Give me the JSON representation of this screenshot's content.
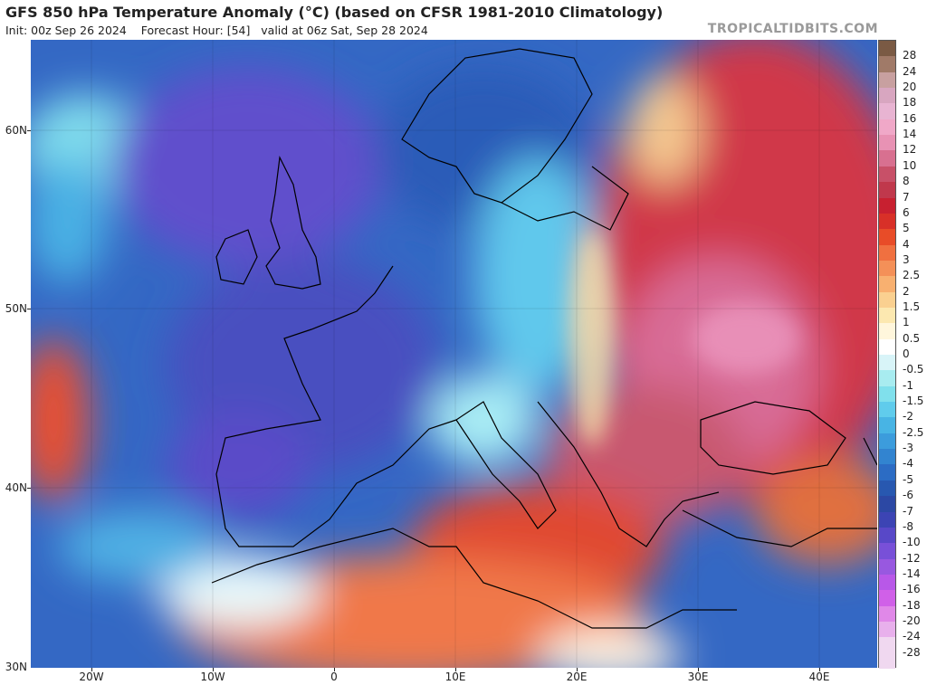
{
  "header": {
    "title": "GFS 850 hPa Temperature Anomaly (°C) (based on CFSR 1981-2010 Climatology)",
    "init": "Init: 00z Sep 26 2024",
    "forecast_hour": "Forecast Hour: [54]",
    "valid": "valid at 06z Sat, Sep 28 2024",
    "brand": "TROPICALTIDBITS.COM"
  },
  "axes": {
    "lat_labels": [
      "60N",
      "50N",
      "40N",
      "30N"
    ],
    "lon_labels": [
      "20W",
      "10W",
      "0",
      "10E",
      "20E",
      "30E",
      "40E"
    ]
  },
  "colorbar": {
    "labels": [
      "28",
      "24",
      "20",
      "18",
      "16",
      "14",
      "12",
      "10",
      "8",
      "7",
      "6",
      "5",
      "4",
      "3",
      "2.5",
      "2",
      "1.5",
      "1",
      "0.5",
      "0",
      "-0.5",
      "-1",
      "-1.5",
      "-2",
      "-2.5",
      "-3",
      "-4",
      "-5",
      "-6",
      "-7",
      "-8",
      "-10",
      "-12",
      "-14",
      "-16",
      "-18",
      "-20",
      "-24",
      "-28"
    ],
    "colors": [
      "#7a5a44",
      "#a07a68",
      "#c8a0a0",
      "#d8a6c0",
      "#e8b4d2",
      "#f0a8c8",
      "#e892b4",
      "#d87090",
      "#c85068",
      "#c0384c",
      "#c82030",
      "#d83028",
      "#e84c28",
      "#f07040",
      "#f49058",
      "#f8b070",
      "#fad090",
      "#fce8b0",
      "#fff6dc",
      "#ffffff",
      "#d8f4f8",
      "#a8ecf0",
      "#80e0ec",
      "#60ccec",
      "#48b4e4",
      "#3c9cdc",
      "#3284d0",
      "#2c6cc4",
      "#2858b0",
      "#2c48a4",
      "#3c44b4",
      "#5848c8",
      "#7850d8",
      "#9858e0",
      "#b858e8",
      "#d060e8",
      "#e088e8",
      "#e8b0ec",
      "#f0d8f0"
    ]
  },
  "map_layers": {
    "atlantic": "#3060c0",
    "cold_core": "#5848c8",
    "warm_east": "#d83848",
    "hot_core": "#c06078",
    "med_warm": "#e8502c",
    "africa": "#f07040"
  }
}
